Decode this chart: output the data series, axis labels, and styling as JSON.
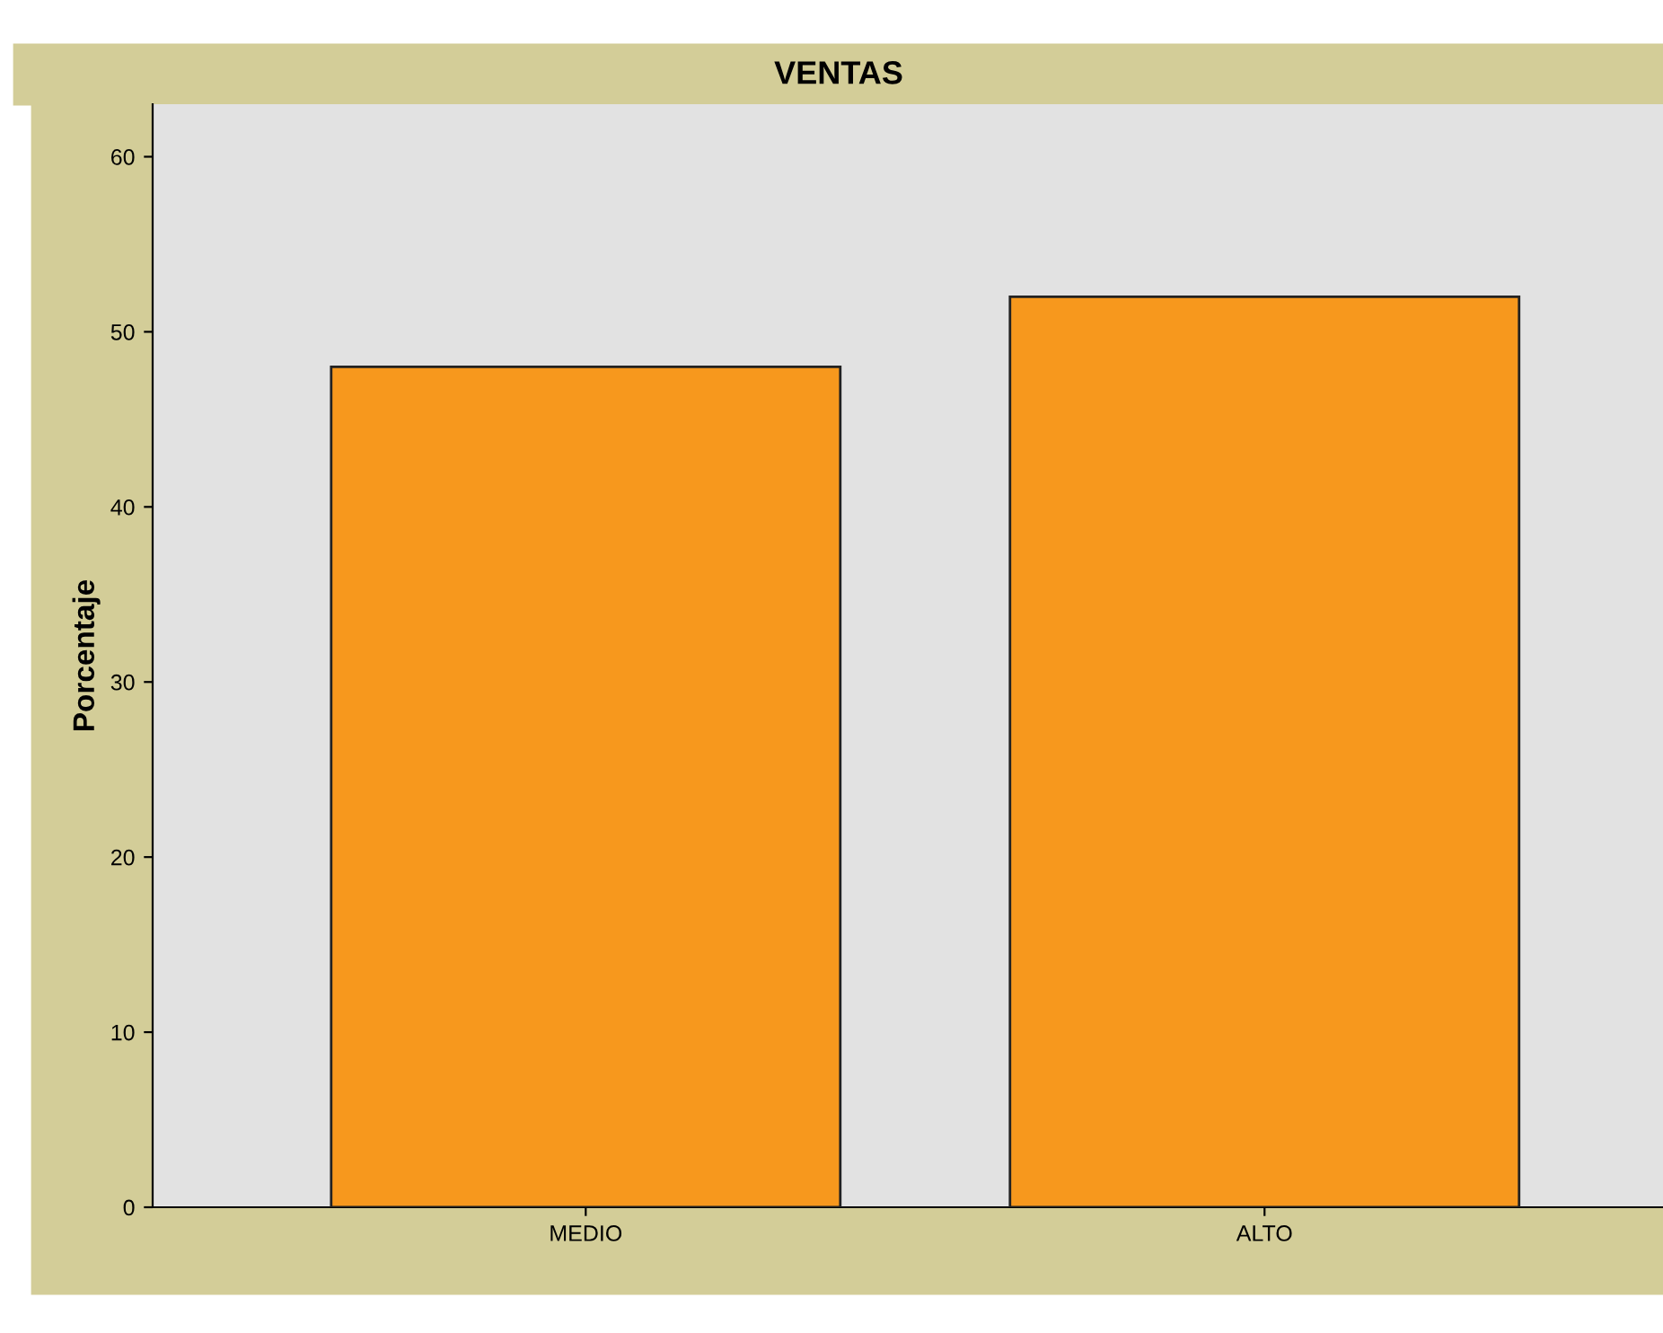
{
  "chart_data": {
    "type": "bar",
    "title": "VENTAS",
    "ylabel": "Porcentaje",
    "categories": [
      "MEDIO",
      "ALTO"
    ],
    "values": [
      48,
      52
    ],
    "color": "#f7981d",
    "ylim": [
      0,
      63
    ],
    "yticks": [
      0,
      10,
      20,
      30,
      40,
      50,
      60
    ]
  }
}
